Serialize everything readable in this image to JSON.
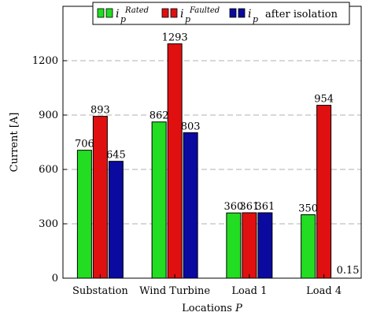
{
  "chart_data": {
    "type": "bar",
    "categories": [
      "Substation",
      "Wind Turbine",
      "Load 1",
      "Load 4"
    ],
    "series": [
      {
        "name": "i_p^Rated",
        "symbol": "i",
        "sub": "p",
        "sup": "Rated",
        "suffix": "",
        "color": "#22dd22",
        "values": [
          706,
          862,
          360,
          350
        ]
      },
      {
        "name": "i_p^Faulted",
        "symbol": "i",
        "sub": "p",
        "sup": "Faulted",
        "suffix": "",
        "color": "#e01010",
        "values": [
          893,
          1293,
          361,
          954
        ]
      },
      {
        "name": "i_p after isolation",
        "symbol": "i",
        "sub": "p",
        "sup": "",
        "suffix": "after isolation",
        "color": "#0a0aa0",
        "values": [
          645,
          803,
          361,
          0.15
        ]
      }
    ],
    "data_labels": [
      [
        "706",
        "893",
        "645"
      ],
      [
        "862",
        "1293",
        "803"
      ],
      [
        "360",
        "361",
        "361"
      ],
      [
        "350",
        "954",
        "0.15"
      ]
    ],
    "xlabel": "Locations",
    "xlabel_symbol": "P",
    "ylabel": "Current [A]",
    "ylim": [
      0,
      1500
    ],
    "yticks": [
      0,
      300,
      600,
      900,
      1200
    ],
    "grid": "horizontal-dashed",
    "legend_position": "top"
  }
}
